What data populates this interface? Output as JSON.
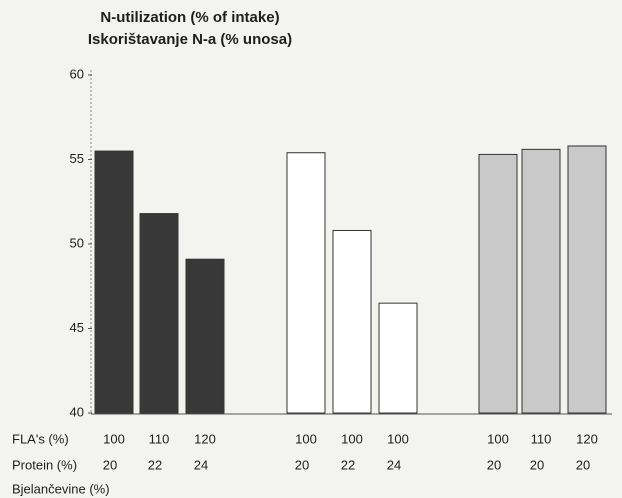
{
  "chart_data": {
    "type": "bar",
    "title": [
      "N-utilization (% of intake)",
      "Iskorištavanje N-a (% unosa)"
    ],
    "ylim": [
      40,
      60
    ],
    "yticks": [
      40,
      45,
      50,
      55,
      60
    ],
    "series": [
      {
        "color": "#383838",
        "values": [
          55.5,
          51.8,
          49.1
        ]
      },
      {
        "color": "#ffffff",
        "values": [
          55.4,
          50.8,
          46.5
        ]
      },
      {
        "color": "#c9c9c9",
        "values": [
          55.3,
          55.6,
          55.8
        ]
      }
    ],
    "category_rows": [
      {
        "label": "FLA's (%)",
        "values": [
          100,
          110,
          120,
          100,
          100,
          100,
          100,
          110,
          120
        ]
      },
      {
        "label": [
          "Protein (%)",
          "Bjelančevine (%)"
        ],
        "values": [
          20,
          22,
          24,
          20,
          22,
          24,
          20,
          20,
          20
        ]
      }
    ]
  }
}
